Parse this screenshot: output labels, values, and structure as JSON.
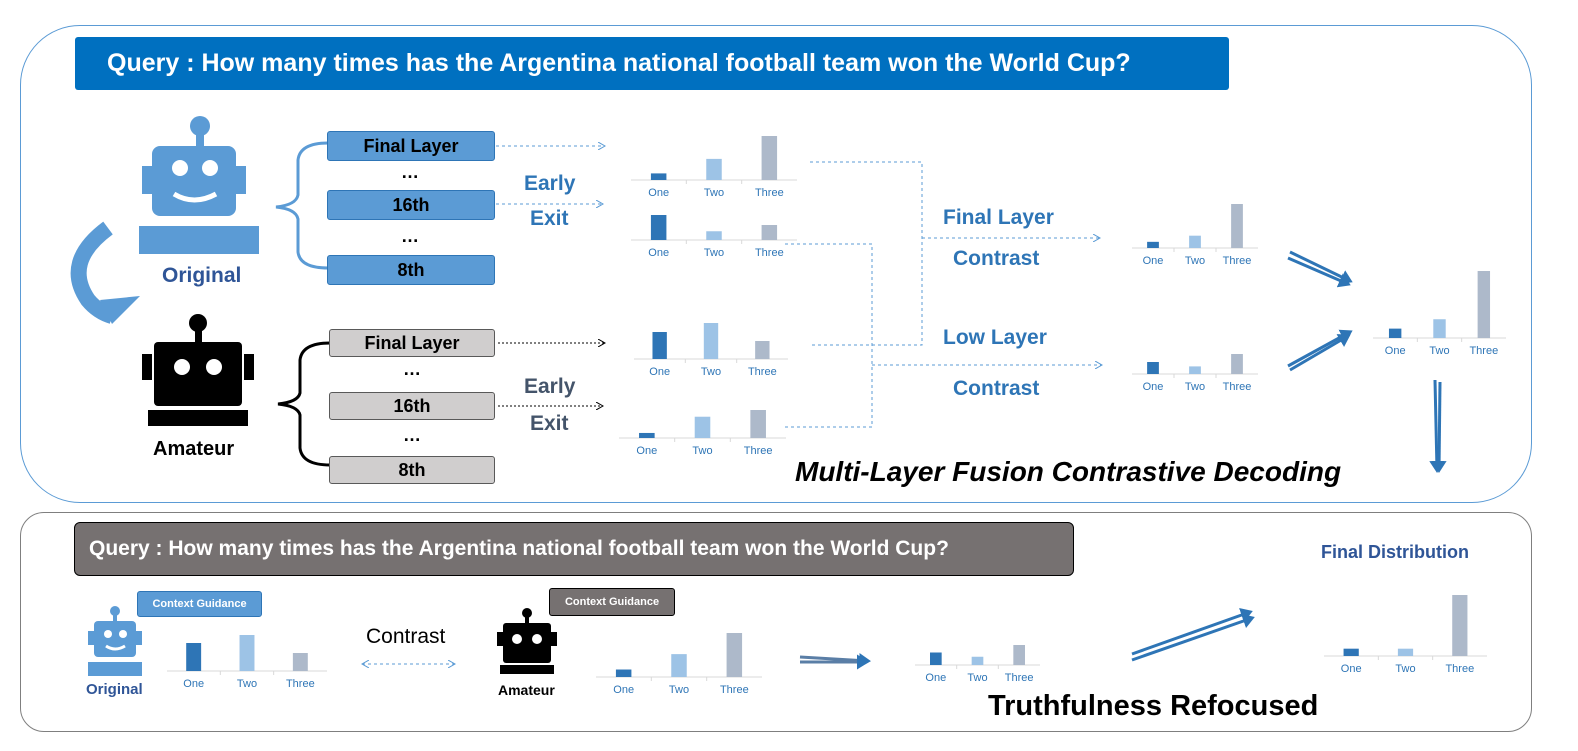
{
  "top": {
    "query": "Query : How many times has the Argentina national football team won the World Cup?",
    "original_label": "Original",
    "amateur_label": "Amateur",
    "layers_original": [
      "Final Layer",
      "16th",
      "8th"
    ],
    "layers_amateur": [
      "Final Layer",
      "16th",
      "8th"
    ],
    "ellipsis": "…",
    "early": "Early",
    "exit": "Exit",
    "final_layer_contrast": [
      "Final Layer",
      "Contrast"
    ],
    "low_layer_contrast": [
      "Low Layer",
      "Contrast"
    ],
    "method_title": "Multi-Layer Fusion Contrastive Decoding",
    "final_distribution": "Final Distribution"
  },
  "bottom": {
    "query": "Query : How many times has the Argentina national football team won the World Cup?",
    "context_guidance_original": "Context Guidance",
    "context_guidance_amateur": "Context Guidance",
    "contrast": "Contrast",
    "original_label": "Original",
    "amateur_label": "Amateur",
    "refocused": "Truthfulness Refocused"
  },
  "colors": {
    "dark_blue": "#2e75b6",
    "light_blue": "#9dc3e6",
    "grey_blue": "#adb9ca",
    "robot_blue": "#5b9bd5"
  },
  "chart_data": [
    {
      "type": "bar",
      "id": "orig-final",
      "categories": [
        "One",
        "Two",
        "Three"
      ],
      "values": [
        0.15,
        0.48,
        1.0
      ]
    },
    {
      "type": "bar",
      "id": "orig-16th",
      "categories": [
        "One",
        "Two",
        "Three"
      ],
      "values": [
        1.0,
        0.35,
        0.6
      ]
    },
    {
      "type": "bar",
      "id": "ama-final",
      "categories": [
        "One",
        "Two",
        "Three"
      ],
      "values": [
        0.75,
        1.0,
        0.5
      ]
    },
    {
      "type": "bar",
      "id": "ama-16th",
      "categories": [
        "One",
        "Two",
        "Three"
      ],
      "values": [
        0.18,
        0.76,
        1.0
      ]
    },
    {
      "type": "bar",
      "id": "final-layer-contrast",
      "categories": [
        "One",
        "Two",
        "Three"
      ],
      "values": [
        0.14,
        0.28,
        1.0
      ]
    },
    {
      "type": "bar",
      "id": "low-layer-contrast",
      "categories": [
        "One",
        "Two",
        "Three"
      ],
      "values": [
        0.6,
        0.38,
        1.0
      ]
    },
    {
      "type": "bar",
      "id": "fused",
      "categories": [
        "One",
        "Two",
        "Three"
      ],
      "values": [
        0.14,
        0.28,
        1.0
      ]
    },
    {
      "type": "bar",
      "id": "ctx-original",
      "categories": [
        "One",
        "Two",
        "Three"
      ],
      "values": [
        0.7,
        0.9,
        0.45
      ]
    },
    {
      "type": "bar",
      "id": "ctx-amateur",
      "categories": [
        "One",
        "Two",
        "Three"
      ],
      "values": [
        0.17,
        0.52,
        1.0
      ]
    },
    {
      "type": "bar",
      "id": "ctx-contrast",
      "categories": [
        "One",
        "Two",
        "Three"
      ],
      "values": [
        0.5,
        0.33,
        0.8
      ]
    },
    {
      "type": "bar",
      "id": "final-distribution",
      "categories": [
        "One",
        "Two",
        "Three"
      ],
      "values": [
        0.12,
        0.12,
        1.0
      ]
    }
  ]
}
